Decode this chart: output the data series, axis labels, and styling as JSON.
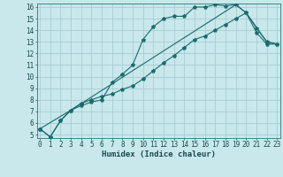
{
  "xlabel": "Humidex (Indice chaleur)",
  "bg_color": "#c8e8ec",
  "line_color": "#1a6b6b",
  "grid_color": "#a8ccd4",
  "xlim": [
    0,
    23
  ],
  "ylim": [
    5,
    16
  ],
  "x_ticks": [
    0,
    1,
    2,
    3,
    4,
    5,
    6,
    7,
    8,
    9,
    10,
    11,
    12,
    13,
    14,
    15,
    16,
    17,
    18,
    19,
    20,
    21,
    22,
    23
  ],
  "y_ticks": [
    5,
    6,
    7,
    8,
    9,
    10,
    11,
    12,
    13,
    14,
    15,
    16
  ],
  "curve1_x": [
    0,
    1,
    2,
    3,
    4,
    5,
    6,
    7,
    8,
    9,
    10,
    11,
    12,
    13,
    14,
    15,
    16,
    17,
    18,
    19,
    20,
    21,
    22,
    23
  ],
  "curve1_y": [
    5.5,
    4.8,
    6.2,
    7.1,
    7.5,
    7.8,
    8.0,
    9.5,
    10.2,
    11.0,
    13.2,
    14.3,
    15.0,
    15.2,
    15.2,
    16.0,
    16.0,
    16.2,
    16.1,
    16.2,
    15.5,
    14.2,
    13.0,
    12.8
  ],
  "curve2_x": [
    0,
    1,
    2,
    3,
    4,
    5,
    6,
    7,
    8,
    9,
    10,
    11,
    12,
    13,
    14,
    15,
    16,
    17,
    18,
    19,
    20,
    21,
    22,
    23
  ],
  "curve2_y": [
    5.5,
    4.8,
    6.2,
    7.1,
    7.7,
    8.0,
    8.3,
    8.5,
    8.9,
    9.2,
    9.8,
    10.5,
    11.2,
    11.8,
    12.5,
    13.2,
    13.5,
    14.0,
    14.5,
    15.0,
    15.5,
    13.8,
    12.8,
    12.8
  ],
  "curve3_x": [
    0,
    3,
    19,
    20,
    22,
    23
  ],
  "curve3_y": [
    5.5,
    7.1,
    16.2,
    15.5,
    13.0,
    12.8
  ]
}
